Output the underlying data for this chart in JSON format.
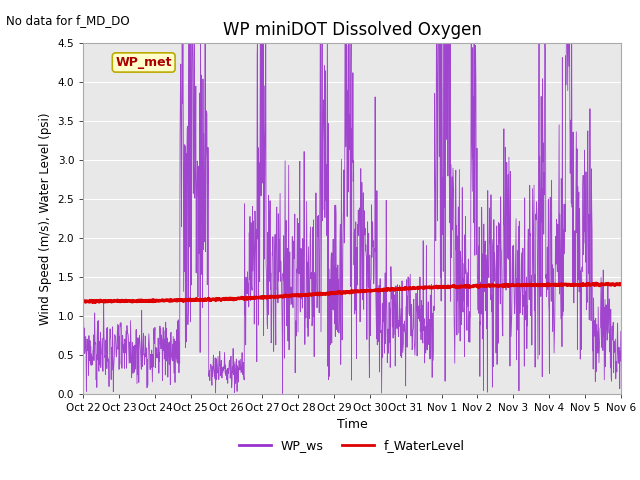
{
  "title": "WP miniDOT Dissolved Oxygen",
  "subtitle": "No data for f_MD_DO",
  "ylabel": "Wind Speed (m/s), Water Level (psi)",
  "xlabel": "Time",
  "ylim": [
    0.0,
    4.7
  ],
  "ylim_display": [
    0.0,
    4.5
  ],
  "bg_color": "#e8e8e8",
  "legend_entries": [
    "WP_ws",
    "f_WaterLevel"
  ],
  "ws_color": "#9933cc",
  "wl_color": "#dd0000",
  "annotation_box": "WP_met",
  "annotation_box_facecolor": "#ffffcc",
  "annotation_box_edgecolor": "#bbaa00",
  "annotation_text_color": "#aa0000",
  "x_tick_labels": [
    "Oct 22",
    "Oct 23",
    "Oct 24",
    "Oct 25",
    "Oct 26",
    "Oct 27",
    "Oct 28",
    "Oct 29",
    "Oct 30",
    "Oct 31",
    "Nov 1",
    "Nov 2",
    "Nov 3",
    "Nov 4",
    "Nov 5",
    "Nov 6"
  ],
  "num_days": 15,
  "num_points": 1500
}
